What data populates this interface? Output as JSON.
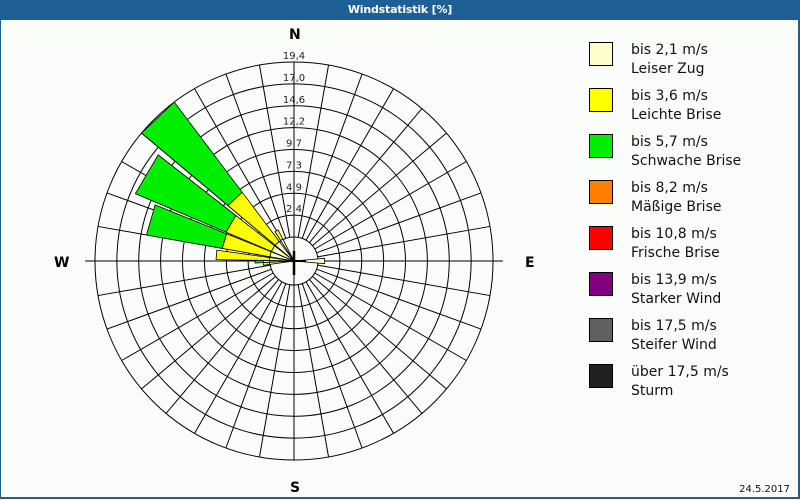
{
  "window": {
    "title": "Windstatistik [%]"
  },
  "compass": {
    "n": "N",
    "e": "E",
    "s": "S",
    "w": "W"
  },
  "date": "24.5.2017",
  "legend": [
    {
      "speed": "bis 2,1 m/s",
      "name": "Leiser Zug",
      "color": "#ffffcc"
    },
    {
      "speed": "bis 3,6 m/s",
      "name": "Leichte Brise",
      "color": "#ffff00"
    },
    {
      "speed": "bis 5,7 m/s",
      "name": "Schwache Brise",
      "color": "#00ee00"
    },
    {
      "speed": "bis 8,2 m/s",
      "name": "Mäßige Brise",
      "color": "#ff8000"
    },
    {
      "speed": "bis 10,8 m/s",
      "name": "Frische Brise",
      "color": "#ff0000"
    },
    {
      "speed": "bis 13,9 m/s",
      "name": "Starker Wind",
      "color": "#800080"
    },
    {
      "speed": "bis 17,5 m/s",
      "name": "Steifer Wind",
      "color": "#606060"
    },
    {
      "speed": "über 17,5 m/s",
      "name": "Sturm",
      "color": "#202020"
    }
  ],
  "chart_data": {
    "type": "wind-rose",
    "title": "Windstatistik [%]",
    "radial_ticks": [
      "2,4",
      "4,9",
      "7,3",
      "9,7",
      "12,2",
      "14,6",
      "17,0",
      "19,4"
    ],
    "radial_max": 19.4,
    "directions": [
      "N",
      "E",
      "S",
      "W"
    ],
    "series_names": [
      "Leiser Zug",
      "Leichte Brise",
      "Schwache Brise",
      "Mäßige Brise",
      "Frische Brise",
      "Starker Wind",
      "Steifer Wind",
      "Sturm"
    ],
    "sectors": [
      {
        "from": 310,
        "to": 323,
        "stack": [
          2.4,
          6.0,
          11.0,
          0,
          0,
          0,
          0,
          0
        ]
      },
      {
        "from": 293,
        "to": 308,
        "stack": [
          2.4,
          4.8,
          9.6,
          0,
          0,
          0,
          0,
          0
        ]
      },
      {
        "from": 280,
        "to": 292,
        "stack": [
          2.4,
          4.7,
          7.5,
          0,
          0,
          0,
          0,
          0
        ]
      },
      {
        "from": 271,
        "to": 278,
        "stack": [
          2.4,
          5.2,
          0,
          0,
          0,
          0,
          0,
          0
        ]
      },
      {
        "from": 267,
        "to": 271,
        "stack": [
          2.4,
          0.6,
          0.8,
          0,
          0,
          0,
          0,
          0
        ]
      },
      {
        "from": 327,
        "to": 333,
        "stack": [
          2.4,
          1.0,
          0,
          0,
          0,
          0,
          0,
          0
        ]
      },
      {
        "from": 262,
        "to": 267,
        "stack": [
          2.4,
          0.6,
          0,
          0,
          0,
          0,
          0,
          0
        ]
      },
      {
        "from": 85,
        "to": 95,
        "stack": [
          3.0,
          0,
          0,
          0,
          0,
          0,
          0,
          0
        ]
      }
    ],
    "legend_position": "right",
    "grid": true,
    "spoke_step_deg": 10
  }
}
